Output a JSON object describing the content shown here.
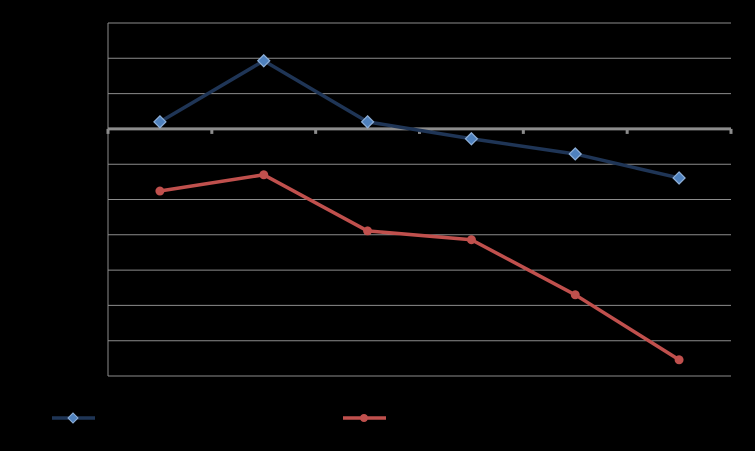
{
  "chart_data": {
    "type": "line",
    "categories": [
      null,
      null,
      null,
      null,
      null,
      null
    ],
    "series": [
      {
        "color": "#1f3556",
        "marker": "diamond",
        "values": [
          0.2,
          1.93,
          0.2,
          -0.28,
          -0.71,
          -1.39
        ]
      },
      {
        "color": "#c0504d",
        "marker": "circle",
        "values": [
          -1.76,
          -1.3,
          -2.89,
          -3.14,
          -4.7,
          -6.54
        ]
      }
    ],
    "ylim": [
      -7,
      3
    ],
    "yticks": [
      -7,
      -6,
      -5,
      -4,
      -3,
      -2,
      -1,
      0,
      1,
      2,
      3
    ],
    "grid": true
  }
}
